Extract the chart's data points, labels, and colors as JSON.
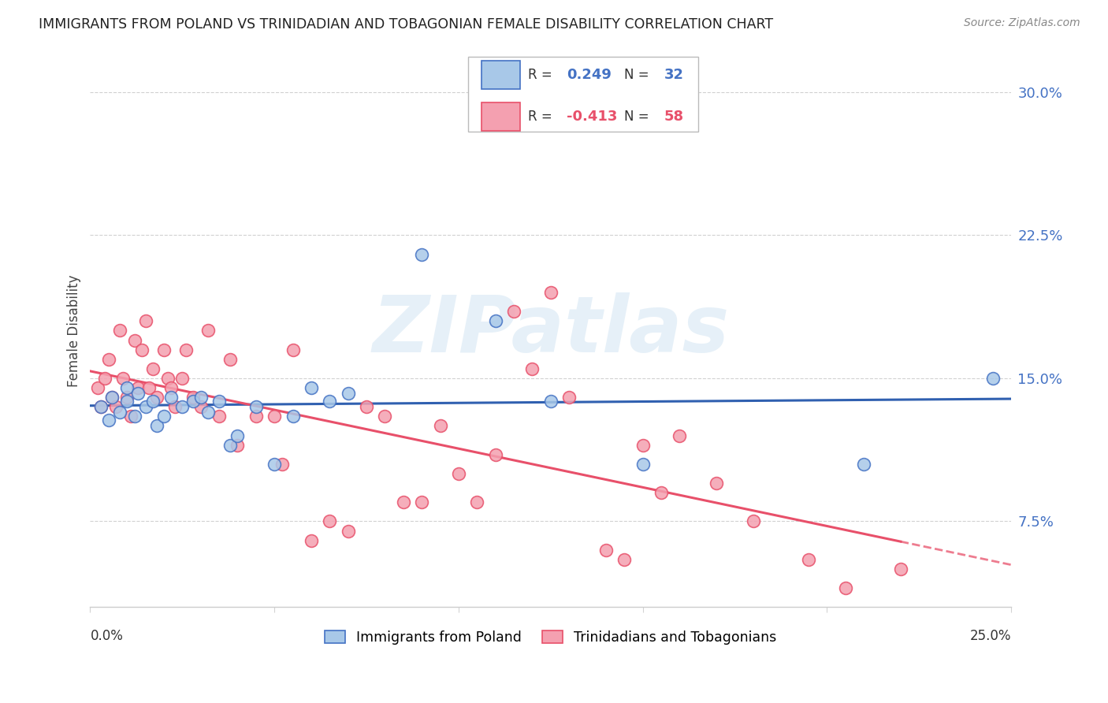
{
  "title": "IMMIGRANTS FROM POLAND VS TRINIDADIAN AND TOBAGONIAN FEMALE DISABILITY CORRELATION CHART",
  "source": "Source: ZipAtlas.com",
  "ylabel": "Female Disability",
  "yticks": [
    7.5,
    15.0,
    22.5,
    30.0
  ],
  "ytick_labels": [
    "7.5%",
    "15.0%",
    "22.5%",
    "30.0%"
  ],
  "xmin": 0.0,
  "xmax": 25.0,
  "ymin": 3.0,
  "ymax": 32.0,
  "legend1_label": "Immigrants from Poland",
  "legend2_label": "Trinidadians and Tobagonians",
  "r1": "0.249",
  "n1": "32",
  "r2": "-0.413",
  "n2": "58",
  "color_blue_fill": "#a8c8e8",
  "color_pink_fill": "#f4a0b0",
  "color_blue_edge": "#4472c4",
  "color_pink_edge": "#e8506a",
  "color_blue_line": "#3060b0",
  "color_pink_line": "#e8506a",
  "watermark": "ZIPatlas",
  "poland_x": [
    0.3,
    0.5,
    0.6,
    0.8,
    1.0,
    1.0,
    1.2,
    1.3,
    1.5,
    1.7,
    1.8,
    2.0,
    2.2,
    2.5,
    2.8,
    3.0,
    3.2,
    3.5,
    3.8,
    4.0,
    4.5,
    5.0,
    5.5,
    6.0,
    6.5,
    7.0,
    9.0,
    11.0,
    12.5,
    15.0,
    21.0,
    24.5
  ],
  "poland_y": [
    13.5,
    12.8,
    14.0,
    13.2,
    13.8,
    14.5,
    13.0,
    14.2,
    13.5,
    13.8,
    12.5,
    13.0,
    14.0,
    13.5,
    13.8,
    14.0,
    13.2,
    13.8,
    11.5,
    12.0,
    13.5,
    10.5,
    13.0,
    14.5,
    13.8,
    14.2,
    21.5,
    18.0,
    13.8,
    10.5,
    10.5,
    15.0
  ],
  "trini_x": [
    0.2,
    0.3,
    0.4,
    0.5,
    0.6,
    0.7,
    0.8,
    0.9,
    1.0,
    1.1,
    1.2,
    1.3,
    1.4,
    1.5,
    1.6,
    1.7,
    1.8,
    2.0,
    2.1,
    2.2,
    2.3,
    2.5,
    2.6,
    2.8,
    3.0,
    3.2,
    3.5,
    3.8,
    4.0,
    4.5,
    5.0,
    5.2,
    5.5,
    6.0,
    6.5,
    7.0,
    7.5,
    8.0,
    8.5,
    9.0,
    9.5,
    10.0,
    10.5,
    11.0,
    11.5,
    12.0,
    12.5,
    13.0,
    14.0,
    14.5,
    15.0,
    15.5,
    16.0,
    17.0,
    18.0,
    19.5,
    20.5,
    22.0
  ],
  "trini_y": [
    14.5,
    13.5,
    15.0,
    16.0,
    14.0,
    13.5,
    17.5,
    15.0,
    14.0,
    13.0,
    17.0,
    14.5,
    16.5,
    18.0,
    14.5,
    15.5,
    14.0,
    16.5,
    15.0,
    14.5,
    13.5,
    15.0,
    16.5,
    14.0,
    13.5,
    17.5,
    13.0,
    16.0,
    11.5,
    13.0,
    13.0,
    10.5,
    16.5,
    6.5,
    7.5,
    7.0,
    13.5,
    13.0,
    8.5,
    8.5,
    12.5,
    10.0,
    8.5,
    11.0,
    18.5,
    15.5,
    19.5,
    14.0,
    6.0,
    5.5,
    11.5,
    9.0,
    12.0,
    9.5,
    7.5,
    5.5,
    4.0,
    5.0
  ]
}
